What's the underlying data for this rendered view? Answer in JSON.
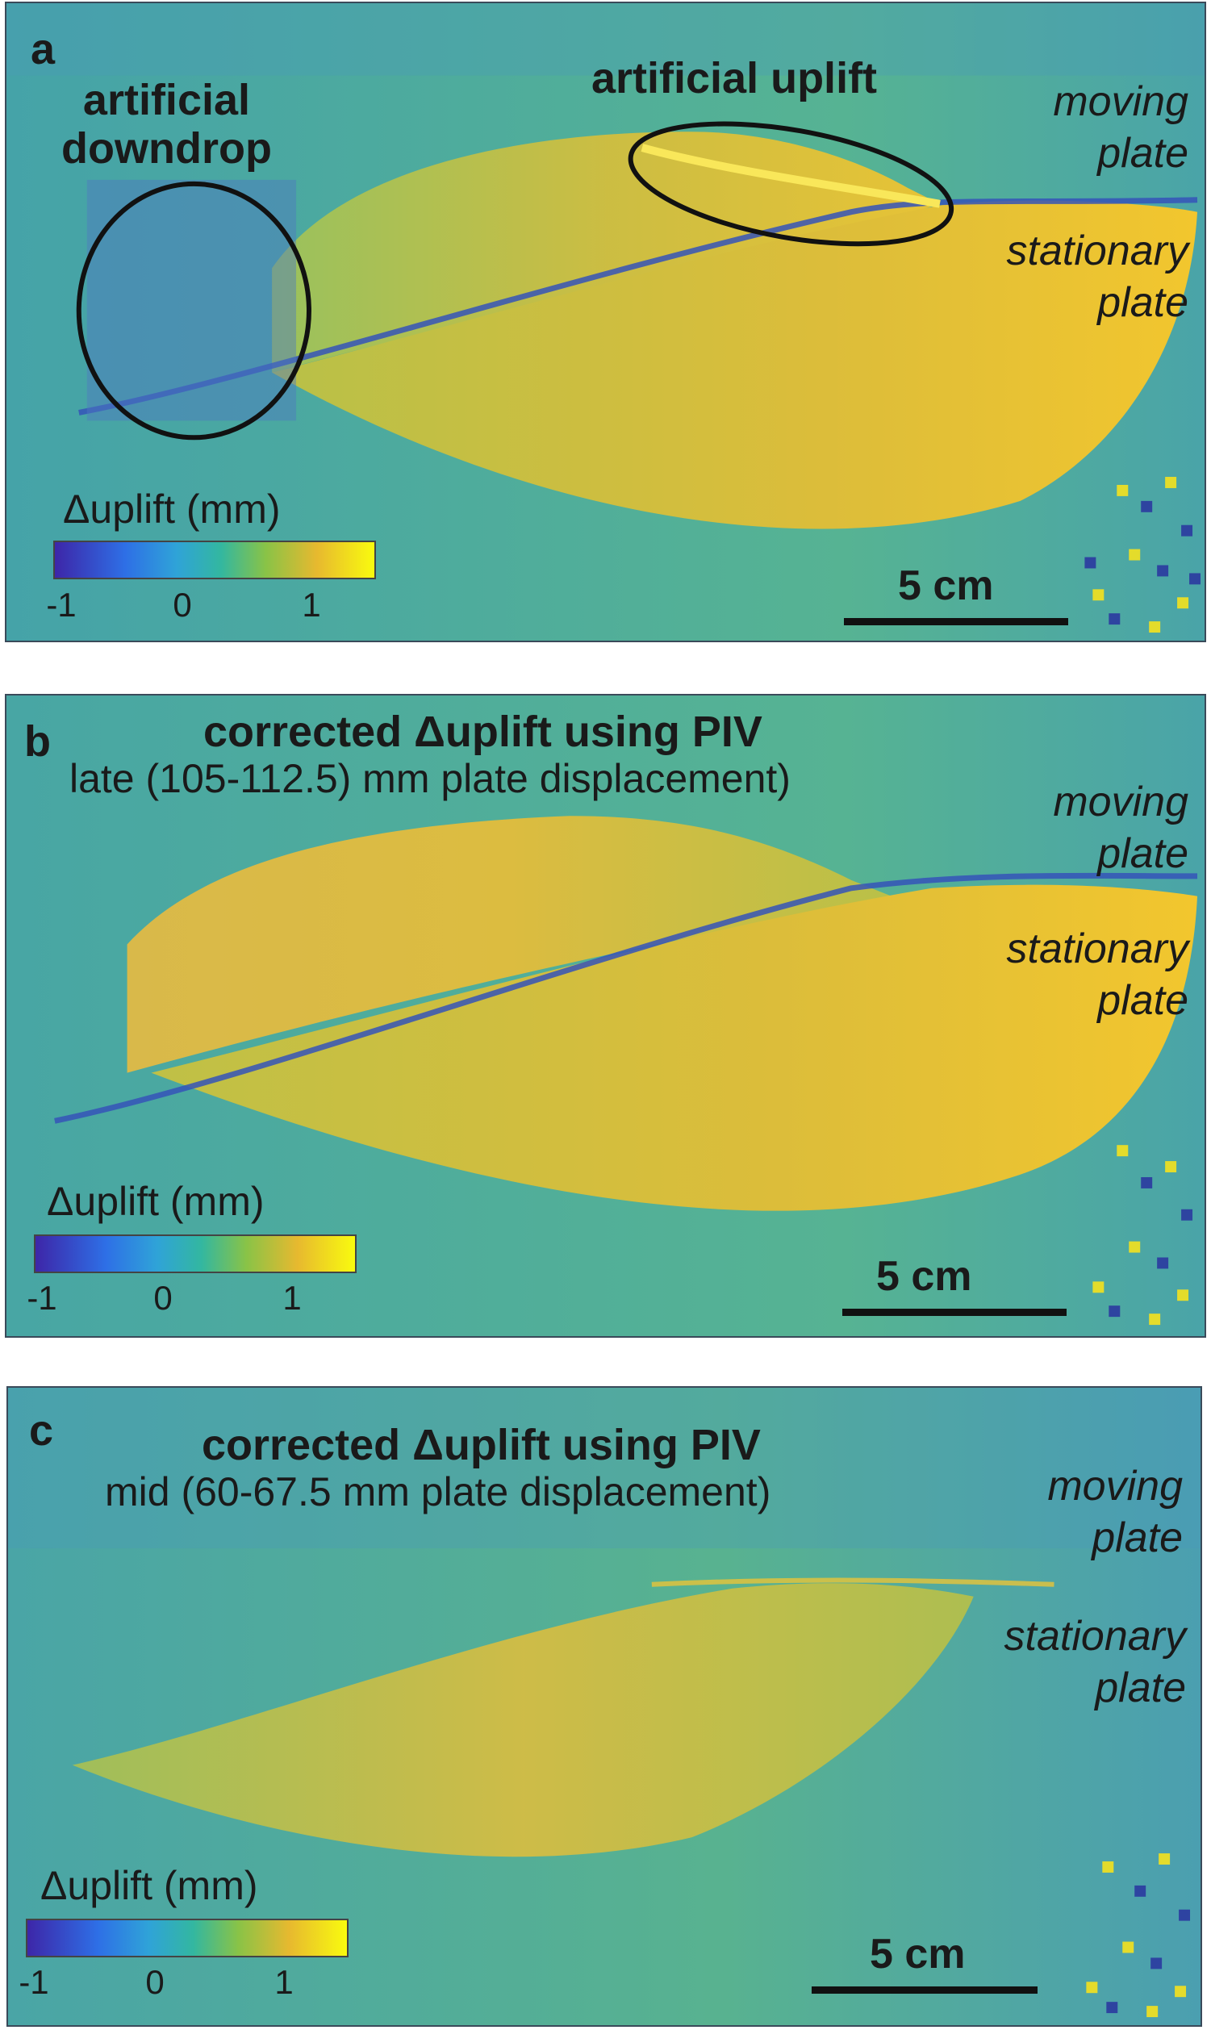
{
  "panels": [
    {
      "letter": "a",
      "title": "",
      "subtitle": "",
      "annotations": {
        "downdrop": "artificial\ndowndrop",
        "uplift": "artificial uplift"
      },
      "moving": "moving\nplate",
      "stationary": "stationary\nplate",
      "colorbar": {
        "label": "Δuplift (mm)",
        "ticks": [
          "-1",
          "0",
          "1"
        ],
        "range": [
          -1,
          1.5
        ]
      },
      "scale": "5 cm"
    },
    {
      "letter": "b",
      "title": "corrected Δuplift using PIV",
      "subtitle": "late (105-112.5) mm plate displacement)",
      "moving": "moving\nplate",
      "stationary": "stationary\nplate",
      "colorbar": {
        "label": "Δuplift (mm)",
        "ticks": [
          "-1",
          "0",
          "1"
        ],
        "range": [
          -1,
          1.5
        ]
      },
      "scale": "5 cm"
    },
    {
      "letter": "c",
      "title": "corrected Δuplift using PIV",
      "subtitle": "mid (60-67.5 mm plate displacement)",
      "moving": "moving\nplate",
      "stationary": "stationary\nplate",
      "colorbar": {
        "label": "Δuplift (mm)",
        "ticks": [
          "-1",
          "0",
          "1"
        ],
        "range": [
          -1,
          1.5
        ]
      },
      "scale": "5 cm"
    }
  ],
  "colors": {
    "background": "#4fae98",
    "high": "#f0c030",
    "low": "#3d4fc0",
    "frame": "#3a4a5a"
  }
}
